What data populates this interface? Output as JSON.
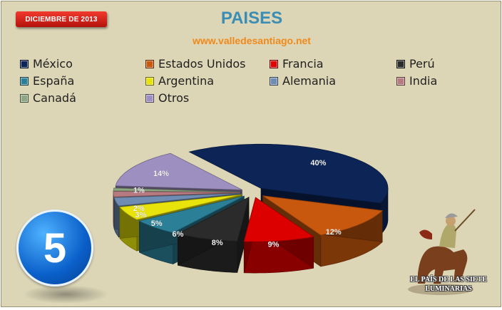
{
  "header": {
    "badge": "DICIEMBRE DE 2013",
    "title": "PAISES",
    "subtitle": "www.valledesantiago.net"
  },
  "slide_number": "5",
  "logo_text": [
    "EL PAÍS DE LAS SIETE",
    "LUMINARIAS"
  ],
  "chart_data": {
    "type": "pie",
    "title": "PAISES",
    "legend_position": "top",
    "categories": [
      "México",
      "Estados Unidos",
      "Francia",
      "Perú",
      "España",
      "Argentina",
      "Alemania",
      "India",
      "Canadá",
      "Otros"
    ],
    "values": [
      40,
      12,
      9,
      8,
      6,
      5,
      3,
      2,
      1,
      14
    ],
    "labels": [
      "40%",
      "12%",
      "9%",
      "8%",
      "6%",
      "5%",
      "3%",
      "2%",
      "1%",
      "14%"
    ],
    "colors": [
      "#0c2456",
      "#c8580e",
      "#dd0000",
      "#2b2b2b",
      "#2b7f96",
      "#e8e30a",
      "#6f8db3",
      "#b67a80",
      "#8fa682",
      "#9d8fbf"
    ]
  }
}
